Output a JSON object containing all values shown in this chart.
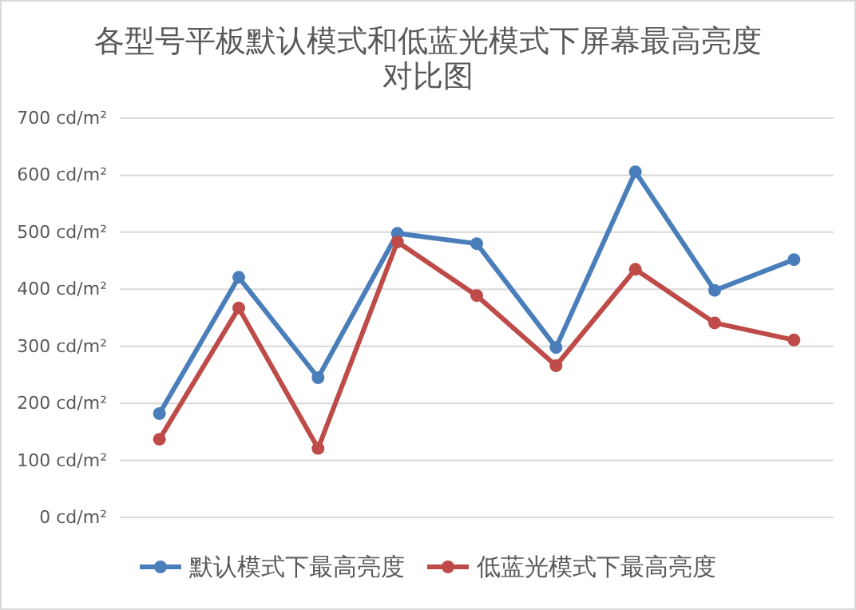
{
  "chart_data": {
    "type": "line",
    "title": "各型号平板默认模式和低蓝光模式下屏幕最高亮度对比图",
    "categories": [
      null,
      null,
      null,
      null,
      null,
      null,
      null,
      null,
      null
    ],
    "series": [
      {
        "name": "默认模式下最高亮度",
        "color": "#4a7ebb",
        "values": [
          182,
          421,
          245,
          498,
          480,
          298,
          606,
          398,
          452
        ]
      },
      {
        "name": "低蓝光模式下最高亮度",
        "color": "#be4b48",
        "values": [
          137,
          367,
          121,
          483,
          389,
          266,
          435,
          341,
          311
        ]
      }
    ],
    "ylim": [
      0,
      700
    ],
    "yticks": [
      {
        "value": 0,
        "label": "0 cd/m²"
      },
      {
        "value": 100,
        "label": "100 cd/m²"
      },
      {
        "value": 200,
        "label": "200 cd/m²"
      },
      {
        "value": 300,
        "label": "300 cd/m²"
      },
      {
        "value": 400,
        "label": "400 cd/m²"
      },
      {
        "value": 500,
        "label": "500 cd/m²"
      },
      {
        "value": 600,
        "label": "600 cd/m²"
      },
      {
        "value": 700,
        "label": "700 cd/m²"
      }
    ],
    "grid": "y",
    "legend": "bottom",
    "marker": "circle",
    "line_style": "solid"
  }
}
